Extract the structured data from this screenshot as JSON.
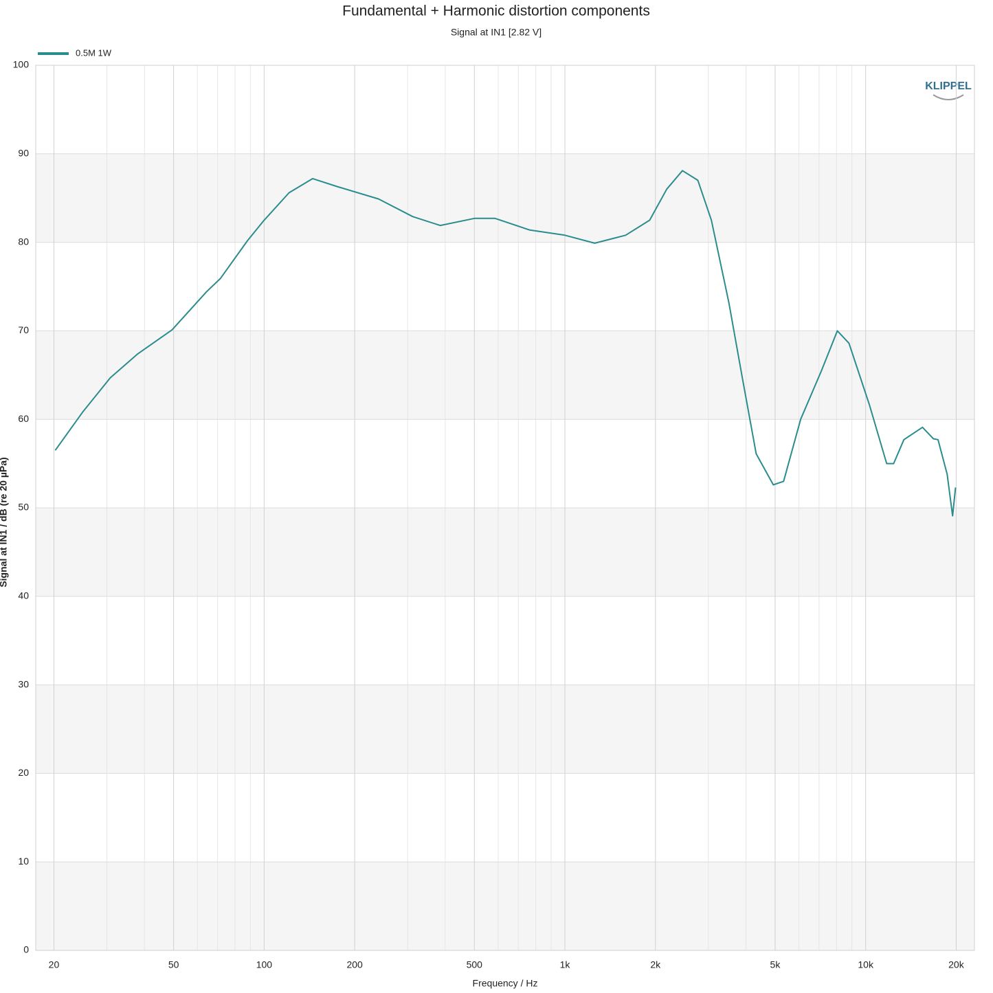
{
  "chart_data": {
    "type": "line",
    "title": "Fundamental + Harmonic distortion components",
    "subtitle": "Signal at IN1 [2.82 V]",
    "xlabel": "Frequency / Hz",
    "ylabel": "Signal at IN1 / dB (re 20 µPa)",
    "logo": "KLIPPEL",
    "xscale": "log",
    "xlim": [
      17.4,
      23000
    ],
    "ylim": [
      0,
      100
    ],
    "xticks": [
      20,
      50,
      100,
      200,
      500,
      {
        "value": 1000,
        "label": "1k"
      },
      {
        "value": 2000,
        "label": "2k"
      },
      {
        "value": 5000,
        "label": "5k"
      },
      {
        "value": 10000,
        "label": "10k"
      },
      {
        "value": 20000,
        "label": "20k"
      }
    ],
    "xminorticks": [
      30,
      40,
      60,
      70,
      80,
      90,
      300,
      400,
      600,
      700,
      800,
      900,
      3000,
      4000,
      6000,
      7000,
      8000,
      9000
    ],
    "yticks": [
      0,
      10,
      20,
      30,
      40,
      50,
      60,
      70,
      80,
      90,
      100
    ],
    "grid": true,
    "legend": "top-left",
    "x": [
      20.2,
      24.9,
      30.8,
      38.0,
      49.4,
      64.3,
      71.5,
      88.1,
      100,
      121,
      145,
      175,
      240,
      312,
      385,
      500,
      586,
      762,
      1000,
      1256,
      1592,
      1914,
      2180,
      2460,
      2767,
      3070,
      3508,
      3890,
      4325,
      4932,
      5336,
      6080,
      7130,
      8050,
      8800,
      10300,
      11750,
      12390,
      13400,
      15450,
      16800,
      17400,
      18660,
      19460,
      19900
    ],
    "series": [
      {
        "name": "0.5M 1W",
        "color": "#2a8c8c",
        "values": [
          56.5,
          60.8,
          64.7,
          67.4,
          70.1,
          74.4,
          75.9,
          80.2,
          82.5,
          85.6,
          87.2,
          86.3,
          84.9,
          82.9,
          81.9,
          82.7,
          82.7,
          81.4,
          80.8,
          79.9,
          80.8,
          82.5,
          86.0,
          88.1,
          87.0,
          82.5,
          73.2,
          64.7,
          56.1,
          52.6,
          53.0,
          60.0,
          65.5,
          70.0,
          68.6,
          61.6,
          55.0,
          55.0,
          57.7,
          59.1,
          57.8,
          57.7,
          53.8,
          49.1,
          52.3
        ]
      }
    ]
  }
}
